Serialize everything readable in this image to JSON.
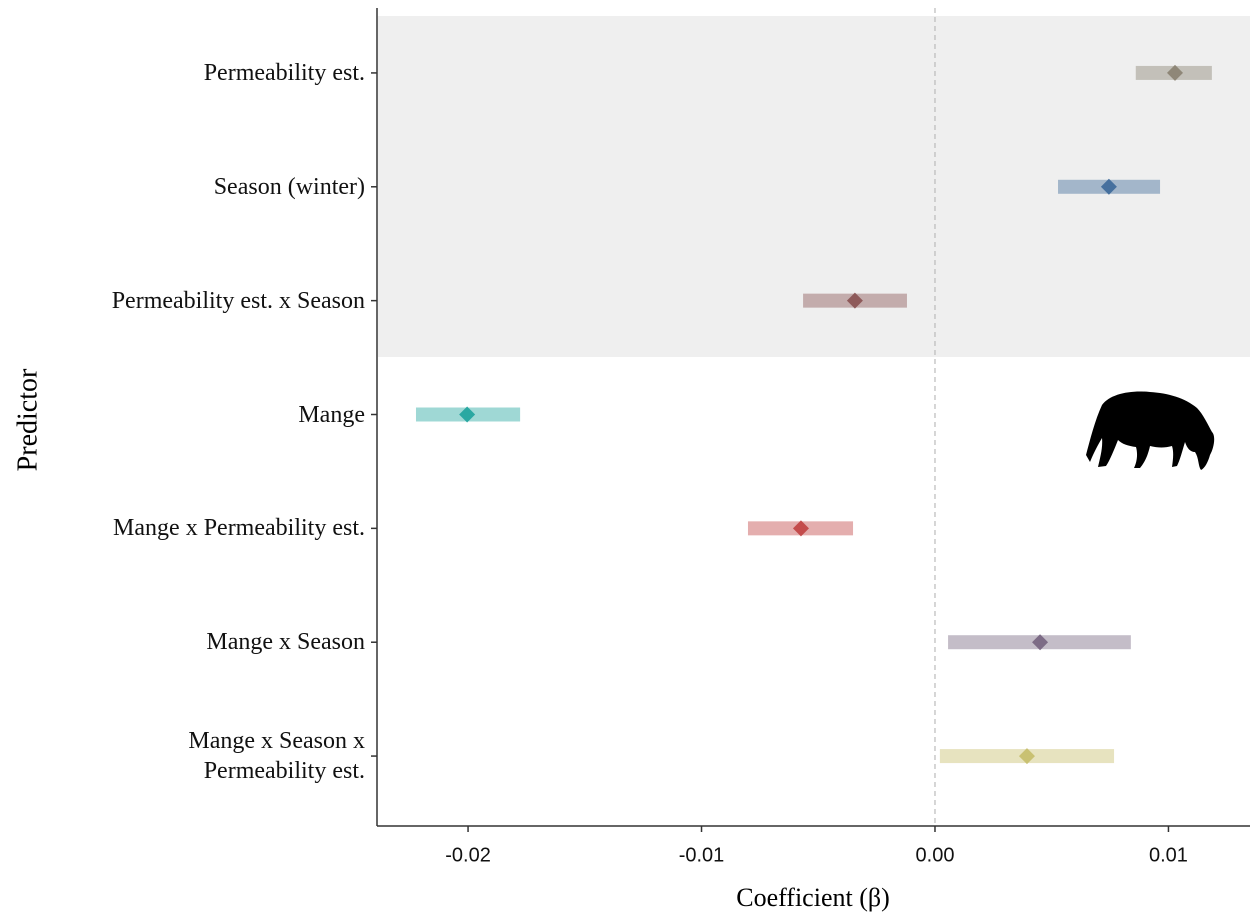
{
  "chart_data": {
    "type": "coefficient",
    "x_label": "Coefficient (β)",
    "y_label": "Predictor",
    "categories": [
      "Permeability est.",
      "Season (winter)",
      "Permeability est. x Season",
      "Mange",
      "Mange x Permeability est.",
      "Mange x Season",
      "Mange x Season x\nPermeability est."
    ],
    "values": [
      0.01028,
      0.00745,
      -0.00343,
      -0.02004,
      -0.00574,
      0.0045,
      0.00394
    ],
    "ci_low": [
      0.0086,
      0.00527,
      -0.00565,
      -0.02223,
      -0.00801,
      0.00056,
      0.00021
    ],
    "ci_high": [
      0.01186,
      0.00964,
      -0.0012,
      -0.01777,
      -0.00351,
      0.00839,
      0.00767
    ],
    "colors": [
      "#8f8778",
      "#46709e",
      "#8e5a5a",
      "#2aa8a2",
      "#c44c4c",
      "#7d6c86",
      "#c9c172"
    ],
    "xlim": [
      -0.0239,
      0.01345
    ],
    "xticks": [
      -0.02,
      -0.01,
      {
        "value": 0,
        "label": "0.00"
      },
      0.01
    ],
    "zero_line": true
  }
}
